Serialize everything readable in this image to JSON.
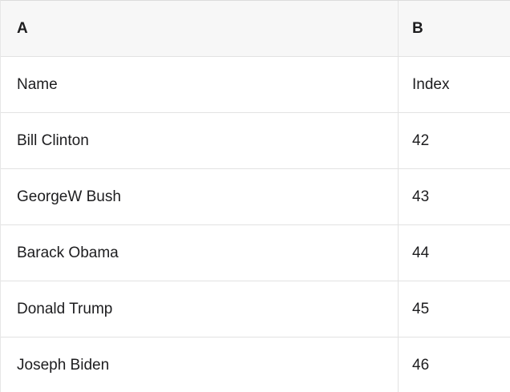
{
  "sheet": {
    "column_headers": [
      "A",
      "B"
    ],
    "field_row": [
      "Name",
      "Index"
    ],
    "rows": [
      [
        "Bill Clinton",
        "42"
      ],
      [
        "GeorgeW Bush",
        "43"
      ],
      [
        "Barack Obama",
        "44"
      ],
      [
        "Donald Trump",
        "45"
      ],
      [
        "Joseph Biden",
        "46"
      ]
    ],
    "colors": {
      "header_background": "#f7f7f7",
      "grid_line": "#e2e2e2",
      "text": "#1d1d1f",
      "cell_background": "#ffffff"
    }
  }
}
